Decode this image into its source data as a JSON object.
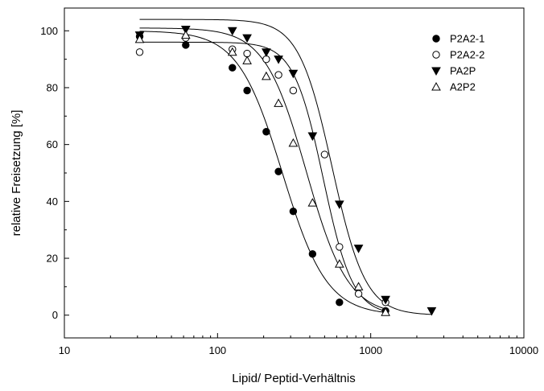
{
  "chart_data": {
    "type": "scatter",
    "title": "",
    "xlabel": "Lipid/ Peptid-Verhältnis",
    "ylabel": "relative Freisetzung [%]",
    "x_scale": "log",
    "xlim": [
      10,
      10000
    ],
    "ylim": [
      -8,
      108
    ],
    "x_ticks": [
      "10",
      "100",
      "1000",
      "10000"
    ],
    "y_ticks": [
      "0",
      "20",
      "40",
      "60",
      "80",
      "100"
    ],
    "grid": false,
    "legend_position": "top-right",
    "series": [
      {
        "name": "P2A2-1",
        "marker": "filled-circle",
        "x": [
          31,
          62,
          125,
          156,
          208,
          250,
          312,
          417,
          625,
          1250
        ],
        "y": [
          98,
          95,
          87,
          79,
          64.5,
          50.5,
          36.5,
          21.5,
          4.5,
          1.5
        ],
        "fit": {
          "top": 100,
          "ec50": 265,
          "hill": 3.0
        }
      },
      {
        "name": "P2A2-2",
        "marker": "open-circle",
        "x": [
          31,
          62,
          125,
          156,
          208,
          250,
          312,
          500,
          625,
          833,
          1250
        ],
        "y": [
          92.5,
          97.5,
          93.5,
          92,
          90,
          84.5,
          79,
          56.5,
          24,
          7.5,
          4.5
        ],
        "fit": {
          "top": 96,
          "ec50": 490,
          "hill": 4.5
        }
      },
      {
        "name": "PA2P",
        "marker": "filled-triangle-down",
        "x": [
          31,
          62,
          125,
          156,
          208,
          250,
          312,
          417,
          625,
          833,
          1250,
          2500
        ],
        "y": [
          98.5,
          100.5,
          100,
          97.5,
          92.5,
          90,
          85,
          63,
          39,
          23.5,
          5.5,
          1.5
        ],
        "fit": {
          "top": 104,
          "ec50": 560,
          "hill": 4.0
        }
      },
      {
        "name": "A2P2",
        "marker": "open-triangle-up",
        "x": [
          31,
          62,
          125,
          156,
          208,
          250,
          312,
          417,
          625,
          833,
          1250
        ],
        "y": [
          97,
          98.5,
          92.5,
          89.5,
          84,
          74.5,
          60.5,
          39.5,
          18,
          10,
          1
        ],
        "fit": {
          "top": 101,
          "ec50": 380,
          "hill": 3.2
        }
      }
    ]
  }
}
